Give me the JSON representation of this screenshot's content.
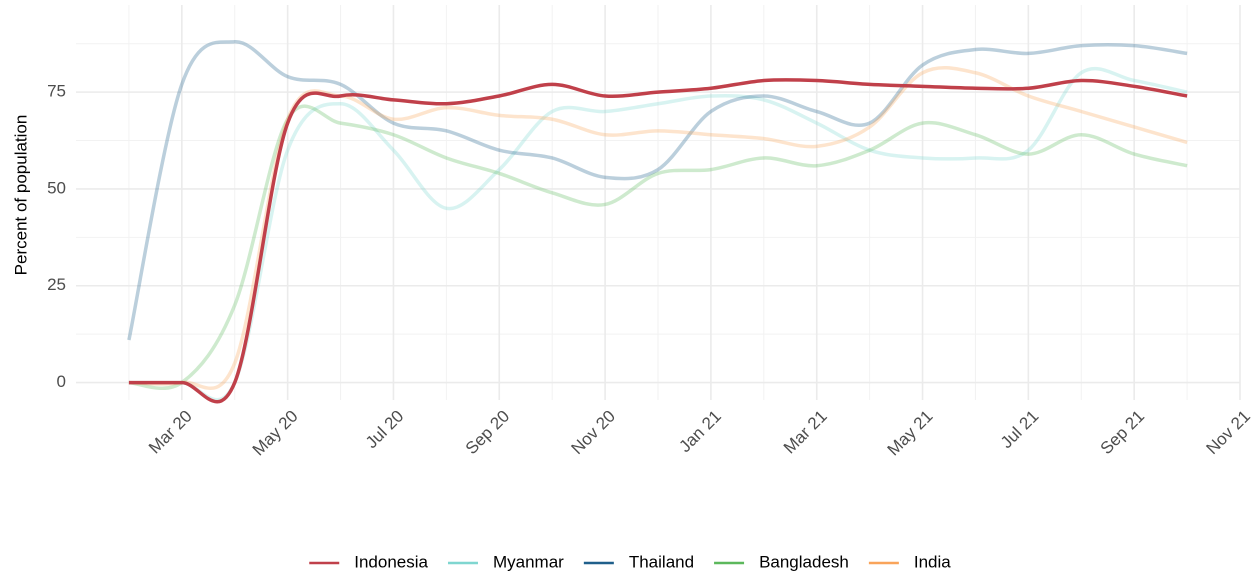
{
  "chart_data": {
    "type": "line",
    "ylabel": "Percent of population",
    "x": [
      "2020-02",
      "2020-03",
      "2020-04",
      "2020-05",
      "2020-06",
      "2020-07",
      "2020-08",
      "2020-09",
      "2020-10",
      "2020-11",
      "2020-12",
      "2021-01",
      "2021-02",
      "2021-03",
      "2021-04",
      "2021-05",
      "2021-06",
      "2021-07",
      "2021-08",
      "2021-09",
      "2021-10"
    ],
    "series": [
      {
        "name": "Indonesia",
        "color": "#c0404a",
        "values": [
          0,
          0,
          0,
          67,
          74,
          73,
          72,
          74,
          77,
          74,
          75,
          76,
          78,
          78,
          77,
          76.5,
          76,
          76,
          78,
          76.5,
          74
        ]
      },
      {
        "name": "Myanmar",
        "color": "#7fd6d0",
        "values": [
          0,
          0,
          0,
          60,
          72,
          60,
          45,
          55,
          70,
          70,
          72,
          74,
          73,
          67,
          60,
          58,
          58,
          60,
          80,
          78,
          75
        ]
      },
      {
        "name": "Thailand",
        "color": "#1f5f8b",
        "values": [
          11,
          77,
          88,
          79,
          77,
          67,
          65,
          60,
          58,
          53,
          55,
          70,
          74,
          70,
          67,
          82,
          86,
          85,
          87,
          87,
          85
        ]
      },
      {
        "name": "Bangladesh",
        "color": "#5cb85c",
        "values": [
          0,
          0,
          20,
          68,
          67,
          64,
          58,
          54,
          49,
          46,
          54,
          55,
          58,
          56,
          60,
          67,
          64,
          59,
          64,
          59,
          56
        ]
      },
      {
        "name": "India",
        "color": "#f9a45a",
        "values": [
          0,
          0,
          5,
          68,
          74,
          68,
          71,
          69,
          68,
          64,
          65,
          64,
          63,
          61,
          66,
          80,
          80,
          74,
          70,
          66,
          62
        ]
      }
    ],
    "highlight": "Indonesia",
    "xlim": [
      "2020-01",
      "2021-11"
    ],
    "xticks": [
      {
        "value": "2020-03",
        "label": "Mar 20"
      },
      {
        "value": "2020-05",
        "label": "May 20"
      },
      {
        "value": "2020-07",
        "label": "Jul 20"
      },
      {
        "value": "2020-09",
        "label": "Sep 20"
      },
      {
        "value": "2020-11",
        "label": "Nov 20"
      },
      {
        "value": "2021-01",
        "label": "Jan 21"
      },
      {
        "value": "2021-03",
        "label": "Mar 21"
      },
      {
        "value": "2021-05",
        "label": "May 21"
      },
      {
        "value": "2021-07",
        "label": "Jul 21"
      },
      {
        "value": "2021-09",
        "label": "Sep 21"
      },
      {
        "value": "2021-11",
        "label": "Nov 21"
      }
    ],
    "ylim": [
      -4.5,
      97.5
    ],
    "yticks": [
      0,
      25,
      50,
      75
    ],
    "grid": true,
    "legend": "bottom"
  }
}
